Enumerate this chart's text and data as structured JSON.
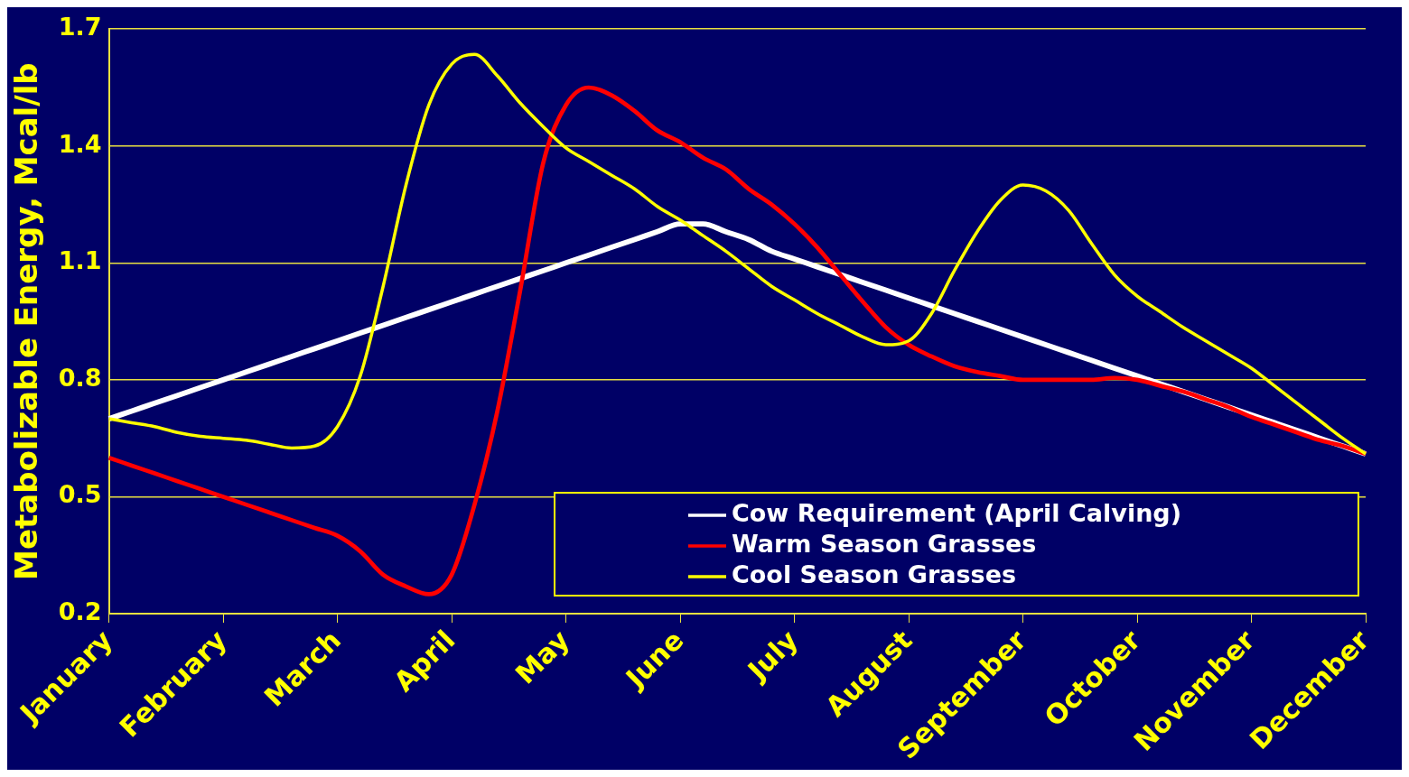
{
  "chart_data": {
    "type": "line",
    "ylabel": "Metabolizable Energy, Mcal/lb",
    "categories": [
      "January",
      null,
      null,
      null,
      null,
      "February",
      null,
      null,
      null,
      null,
      "March",
      null,
      null,
      null,
      null,
      "April",
      null,
      null,
      null,
      null,
      "May",
      null,
      null,
      null,
      null,
      "June",
      null,
      null,
      null,
      null,
      "July",
      null,
      null,
      null,
      null,
      "August",
      null,
      null,
      null,
      null,
      "September",
      null,
      null,
      null,
      null,
      "October",
      null,
      null,
      null,
      null,
      "November",
      null,
      null,
      null,
      null,
      "December"
    ],
    "ylim": [
      0.2,
      1.7
    ],
    "yticks": [
      0.2,
      0.5,
      0.8,
      1.1,
      1.4,
      1.7
    ],
    "grid": "y",
    "legend": "bottom right",
    "marker": "none",
    "line_style": "solid",
    "series": [
      {
        "name": "Cow Requirement (April Calving)",
        "color": "#ffffff",
        "values": [
          0.7,
          0.72,
          0.74,
          0.76,
          0.78,
          0.8,
          0.82,
          0.84,
          0.86,
          0.88,
          0.9,
          0.92,
          0.94,
          0.96,
          0.98,
          1.0,
          1.02,
          1.04,
          1.06,
          1.08,
          1.1,
          1.12,
          1.14,
          1.16,
          1.18,
          1.2,
          1.2,
          1.18,
          1.16,
          1.13,
          1.11,
          1.09,
          1.07,
          1.05,
          1.03,
          1.01,
          0.99,
          0.97,
          0.95,
          0.93,
          0.91,
          0.89,
          0.87,
          0.85,
          0.83,
          0.81,
          0.79,
          0.77,
          0.75,
          0.73,
          0.71,
          0.69,
          0.67,
          0.65,
          0.63,
          0.61
        ]
      },
      {
        "name": "Warm Season Grasses",
        "color": "#ff0000",
        "values": [
          0.6,
          0.58,
          0.56,
          0.54,
          0.52,
          0.5,
          0.48,
          0.46,
          0.44,
          0.42,
          0.4,
          0.36,
          0.3,
          0.27,
          0.25,
          0.3,
          0.48,
          0.72,
          1.03,
          1.355,
          1.505,
          1.55,
          1.53,
          1.49,
          1.44,
          1.41,
          1.37,
          1.34,
          1.29,
          1.25,
          1.2,
          1.14,
          1.07,
          1.0,
          0.935,
          0.89,
          0.86,
          0.835,
          0.82,
          0.81,
          0.8,
          0.8,
          0.8,
          0.8,
          0.805,
          0.8,
          0.785,
          0.77,
          0.75,
          0.73,
          0.705,
          0.685,
          0.665,
          0.645,
          0.63,
          0.61
        ]
      },
      {
        "name": "Cool Season Grasses",
        "color": "#ffff00",
        "values": [
          0.7,
          0.69,
          0.68,
          0.665,
          0.655,
          0.65,
          0.645,
          0.635,
          0.625,
          0.63,
          0.68,
          0.81,
          1.04,
          1.3,
          1.505,
          1.61,
          1.635,
          1.58,
          1.51,
          1.45,
          1.395,
          1.36,
          1.325,
          1.29,
          1.245,
          1.21,
          1.17,
          1.13,
          1.085,
          1.04,
          1.005,
          0.97,
          0.94,
          0.91,
          0.89,
          0.9,
          0.97,
          1.08,
          1.18,
          1.26,
          1.3,
          1.285,
          1.235,
          1.15,
          1.07,
          1.015,
          0.975,
          0.935,
          0.9,
          0.865,
          0.83,
          0.785,
          0.74,
          0.695,
          0.65,
          0.61
        ]
      }
    ]
  }
}
